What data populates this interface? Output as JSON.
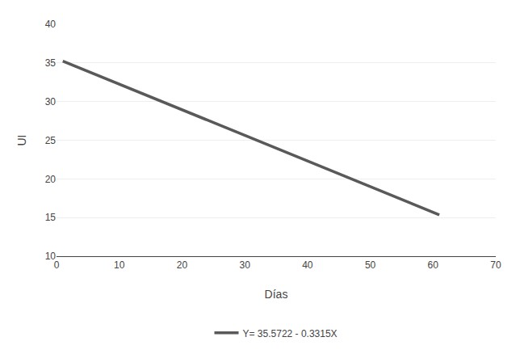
{
  "chart_data": {
    "type": "line",
    "x": [
      1,
      61
    ],
    "series": [
      {
        "name": "Y= 35.5722 - 0.3315X",
        "color": "#595959",
        "values": [
          35.2407,
          15.3507
        ]
      }
    ],
    "xlabel": "Días",
    "ylabel": "UI",
    "xlim": [
      0,
      70
    ],
    "ylim": [
      10,
      40
    ],
    "xticks": [
      0,
      10,
      20,
      30,
      40,
      50,
      60,
      70
    ],
    "yticks": [
      10,
      15,
      20,
      25,
      30,
      35,
      40
    ],
    "grid": "y",
    "legend": "bottom"
  }
}
